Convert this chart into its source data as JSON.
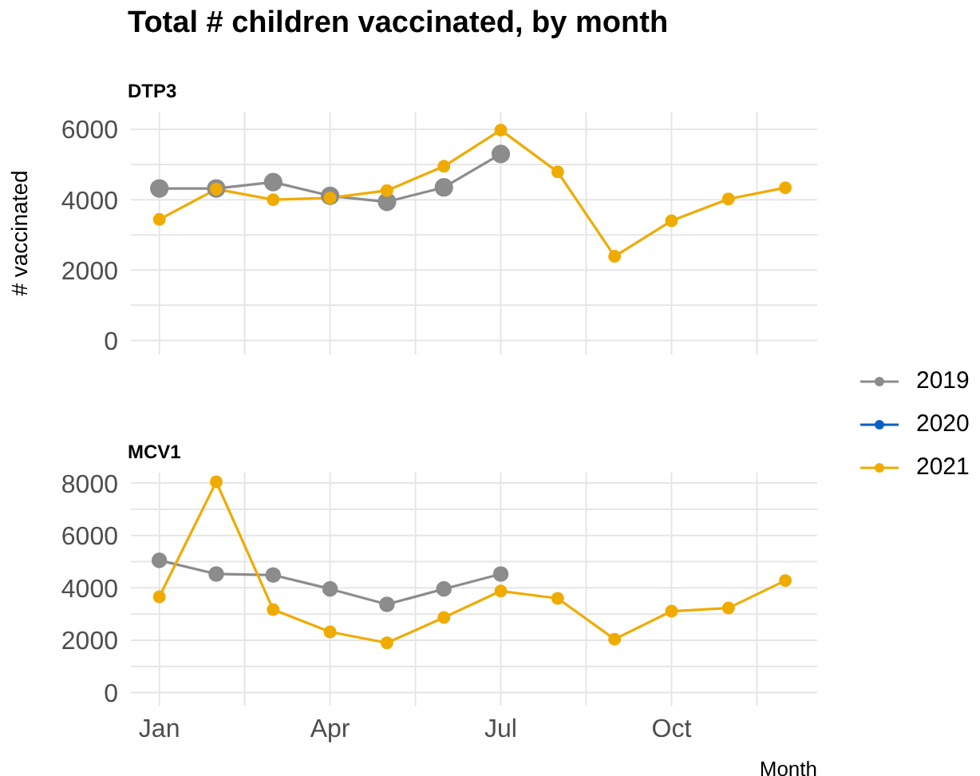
{
  "chart_data": [
    {
      "type": "line",
      "title": "Total # children vaccinated, by month",
      "subtitle": "DTP3",
      "ylabel": "# vaccinated",
      "categories": [
        null,
        null,
        null,
        null,
        null,
        null,
        null,
        null,
        null,
        null,
        null,
        null
      ],
      "ylim": [
        -400,
        6500
      ],
      "yticks": [
        0,
        {
          "value": 1000,
          "label": null
        },
        2000,
        {
          "value": 3000,
          "label": null
        },
        4000,
        {
          "value": 5000,
          "label": null
        },
        6000
      ],
      "grid": true,
      "marker": "circle",
      "legend": "right",
      "series": [
        {
          "name": "2019",
          "color": "#8c8c8c",
          "values": [
            4320,
            4320,
            4500,
            4110,
            3940,
            4350,
            5300,
            null,
            null,
            null,
            null,
            null
          ]
        },
        {
          "name": "2020",
          "color": "#0a5fc4",
          "values": [
            null,
            null,
            null,
            null,
            null,
            null,
            null,
            null,
            null,
            null,
            null,
            null
          ]
        },
        {
          "name": "2021",
          "color": "#f0ab00",
          "values": [
            3440,
            4300,
            4000,
            4050,
            4260,
            4950,
            5980,
            4790,
            2390,
            3400,
            4020,
            4340
          ]
        }
      ]
    },
    {
      "type": "line",
      "title": "MCV1",
      "xlabel": "Month",
      "categories": [
        "Jan",
        null,
        null,
        "Apr",
        null,
        null,
        "Jul",
        null,
        null,
        "Oct",
        null,
        null
      ],
      "ylim": [
        -500,
        8400
      ],
      "yticks": [
        0,
        {
          "value": 1000,
          "label": null
        },
        2000,
        {
          "value": 3000,
          "label": null
        },
        4000,
        {
          "value": 5000,
          "label": null
        },
        6000,
        {
          "value": 7000,
          "label": null
        },
        8000
      ],
      "grid": true,
      "marker": "circle",
      "series": [
        {
          "name": "2019",
          "color": "#8c8c8c",
          "values": [
            5050,
            4530,
            4490,
            3960,
            3370,
            3960,
            4530,
            null,
            null,
            null,
            null,
            null
          ]
        },
        {
          "name": "2021",
          "color": "#f0ab00",
          "values": [
            3660,
            8050,
            3170,
            2320,
            1900,
            2870,
            3880,
            3600,
            2040,
            3110,
            3230,
            4280
          ]
        }
      ]
    }
  ]
}
